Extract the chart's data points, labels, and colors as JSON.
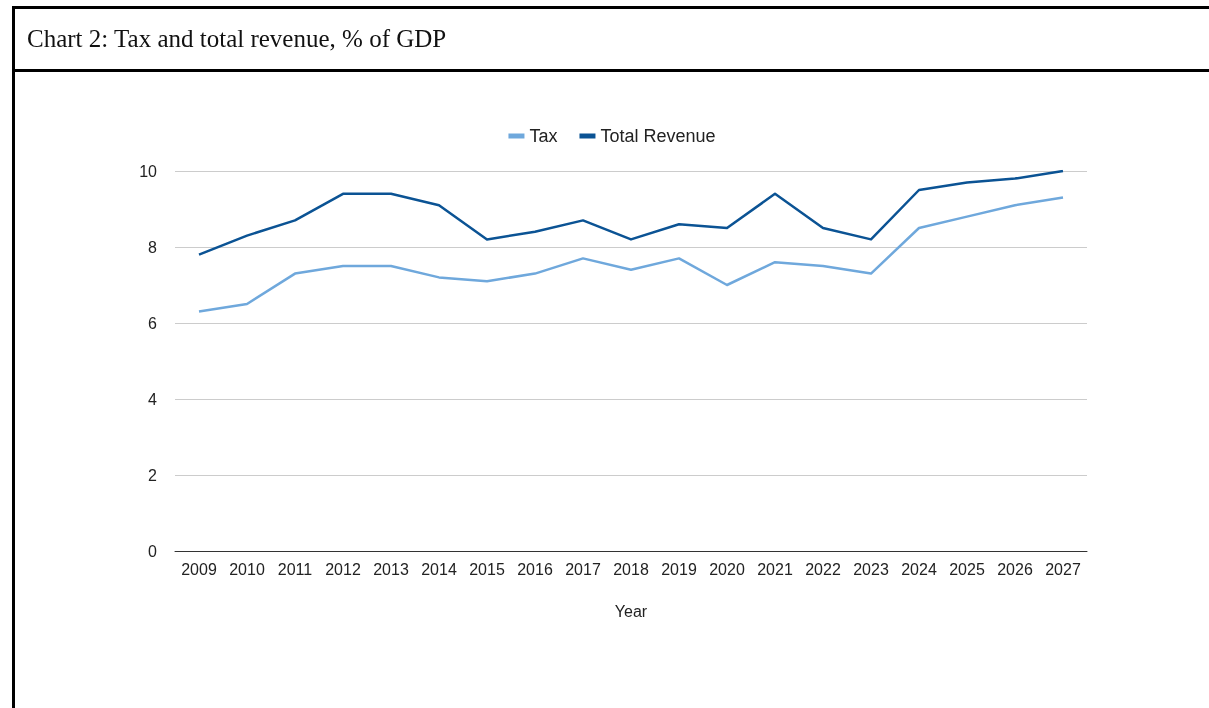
{
  "chart_data": {
    "type": "line",
    "title": "Chart 2: Tax and total revenue, % of GDP",
    "xlabel": "Year",
    "categories": [
      "2009",
      "2010",
      "2011",
      "2012",
      "2013",
      "2014",
      "2015",
      "2016",
      "2017",
      "2018",
      "2019",
      "2020",
      "2021",
      "2022",
      "2023",
      "2024",
      "2025",
      "2026",
      "2027"
    ],
    "series": [
      {
        "name": "Tax",
        "color": "#6fa8dc",
        "values": [
          6.3,
          6.5,
          7.3,
          7.5,
          7.5,
          7.2,
          7.1,
          7.3,
          7.7,
          7.4,
          7.7,
          7.0,
          7.6,
          7.5,
          7.3,
          8.5,
          8.8,
          9.1,
          9.3
        ]
      },
      {
        "name": "Total Revenue",
        "color": "#0b5394",
        "values": [
          7.8,
          8.3,
          8.7,
          9.4,
          9.4,
          9.1,
          8.2,
          8.4,
          8.7,
          8.2,
          8.6,
          8.5,
          9.4,
          8.5,
          8.2,
          9.5,
          9.7,
          9.8,
          10
        ]
      }
    ],
    "ylim": [
      0,
      10
    ],
    "yticks": [
      0,
      2,
      4,
      6,
      8,
      10
    ],
    "grid": "y",
    "legend": "top",
    "marker": "none",
    "line_style": "solid"
  }
}
